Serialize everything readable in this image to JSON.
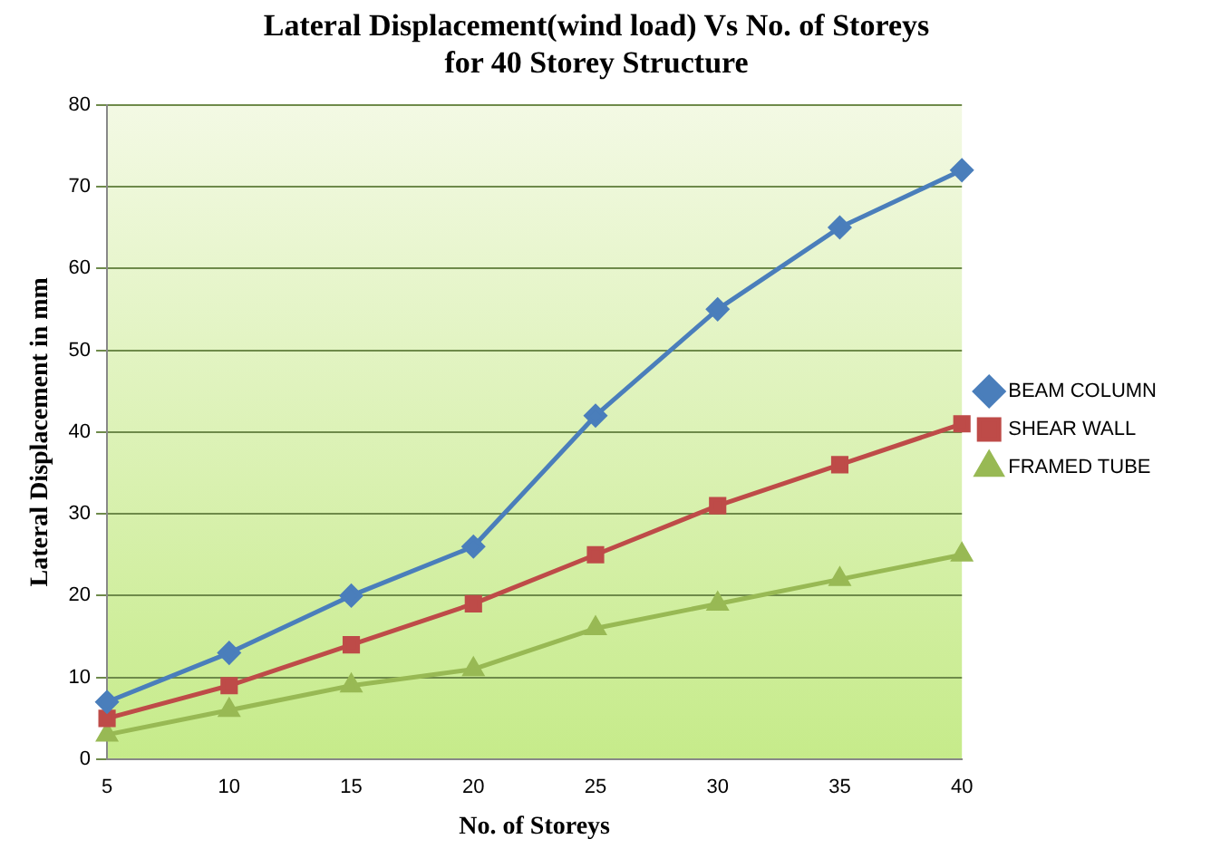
{
  "chart_data": {
    "type": "line",
    "title": "Lateral Displacement(wind load) Vs No. of Storeys\nfor 40 Storey Structure",
    "xlabel": "No. of Storeys",
    "ylabel": "Lateral Displacement in mm",
    "categories": [
      "5",
      "10",
      "15",
      "20",
      "25",
      "30",
      "35",
      "40"
    ],
    "series": [
      {
        "name": "BEAM COLUMN",
        "color": "#4a7ebb",
        "marker": "diamond",
        "values": [
          7,
          13,
          20,
          26,
          42,
          55,
          65,
          72
        ]
      },
      {
        "name": "SHEAR WALL",
        "color": "#be4b48",
        "marker": "square",
        "values": [
          5,
          9,
          14,
          19,
          25,
          31,
          36,
          41
        ]
      },
      {
        "name": "FRAMED TUBE",
        "color": "#98b954",
        "marker": "triangle",
        "values": [
          3,
          6,
          9,
          11,
          16,
          19,
          22,
          25
        ]
      }
    ],
    "ylim": [
      0,
      80
    ],
    "yticks": [
      0,
      10,
      20,
      30,
      40,
      50,
      60,
      70,
      80
    ],
    "grid": "y",
    "legend": "right",
    "line_style": "solid"
  }
}
